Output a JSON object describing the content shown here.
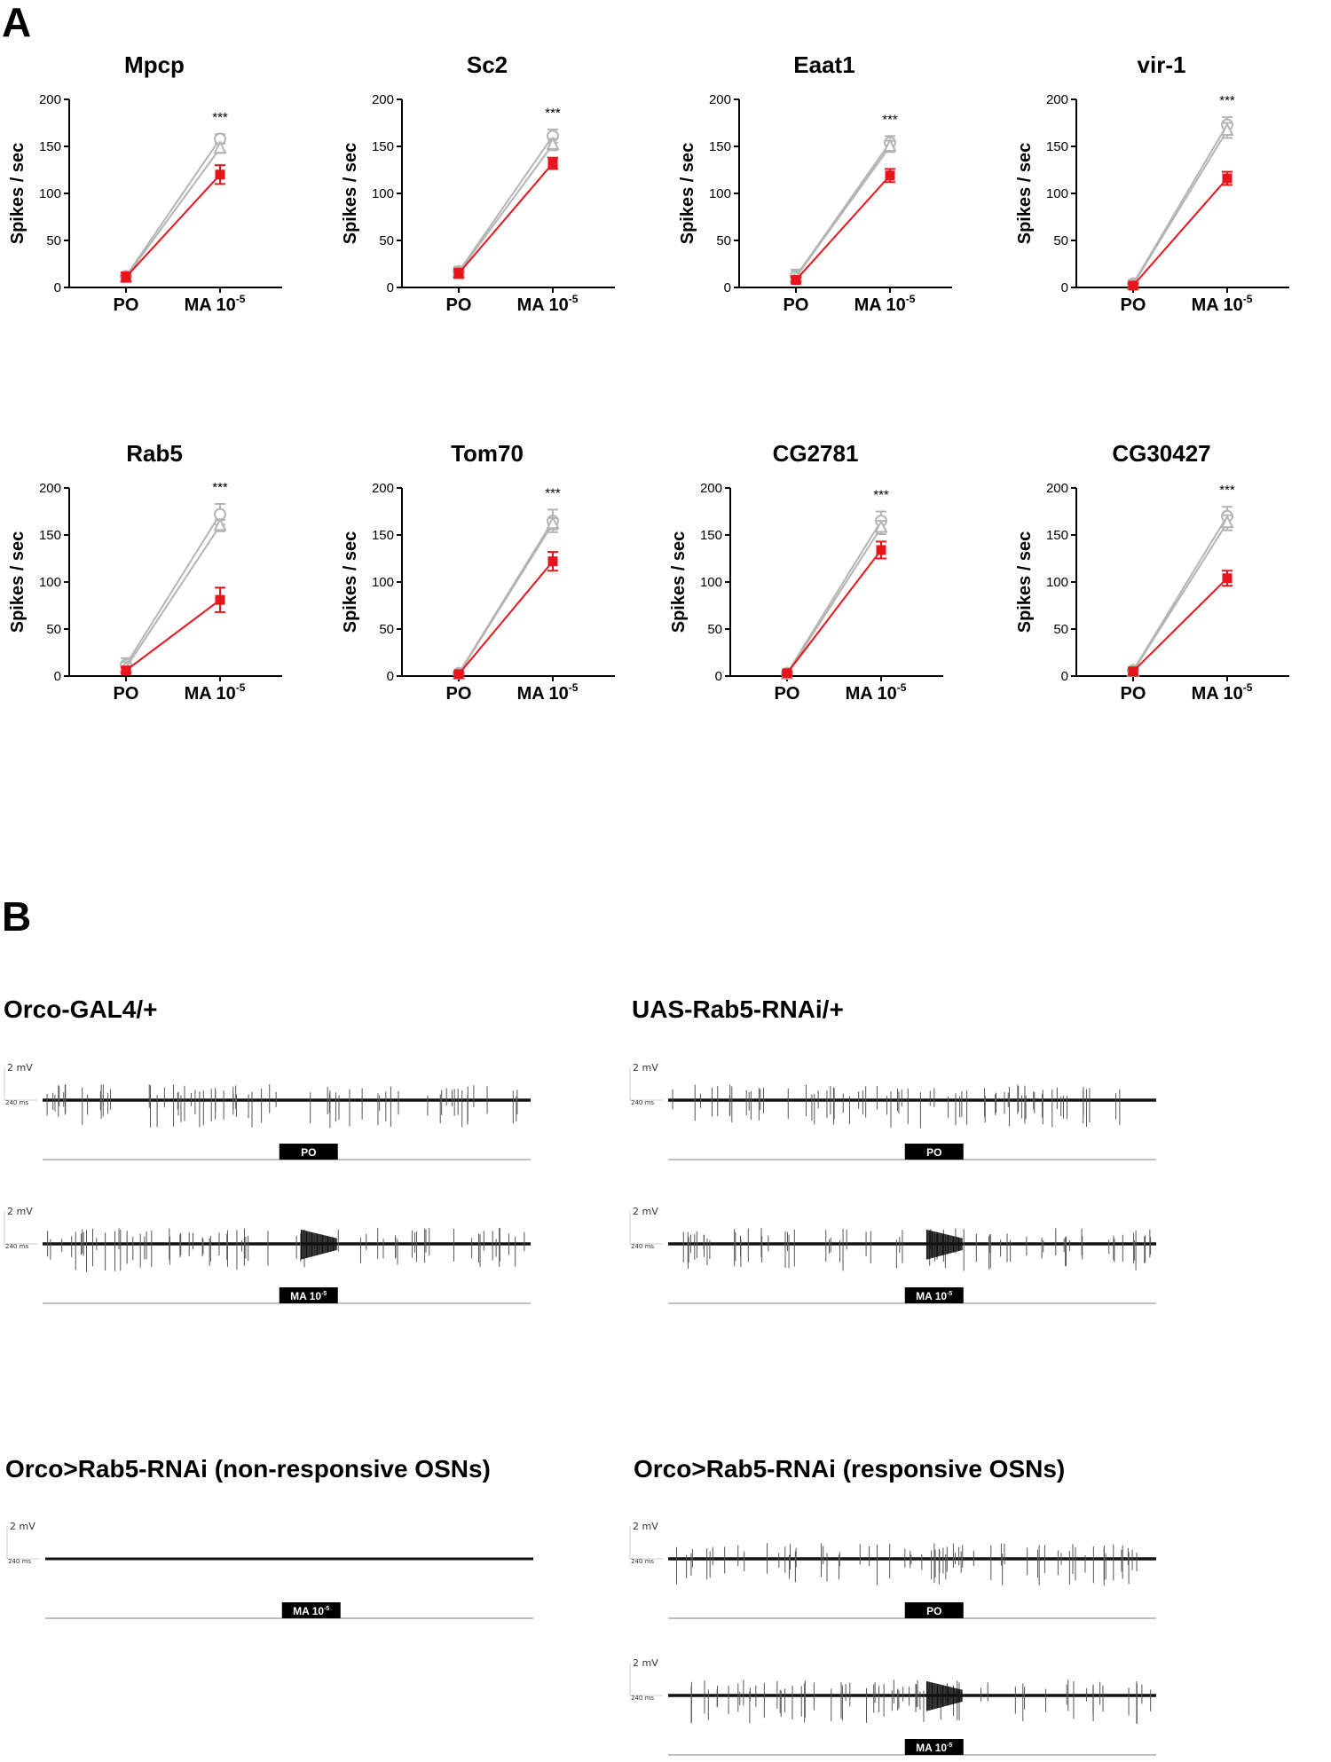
{
  "panel_a": {
    "letter": "A"
  },
  "panel_b": {
    "letter": "B"
  },
  "colors": {
    "control": "#b4b4b4",
    "rnai": "#e8141c",
    "trace": "#111111",
    "baseline": "#9a9a9a"
  },
  "chart_data": [
    {
      "type": "line",
      "title": "Mpcp",
      "ylabel": "Spikes / sec",
      "categories": [
        "PO",
        "MA 10"
      ],
      "x_superscript": "-5",
      "ylim": [
        0,
        200
      ],
      "yticks": [
        0,
        50,
        100,
        150,
        200
      ],
      "significance": "***",
      "series": [
        {
          "marker": "circle",
          "color": "control",
          "values": [
            12,
            158
          ],
          "err": [
            4,
            5
          ]
        },
        {
          "marker": "triangle",
          "color": "control",
          "values": [
            11,
            148
          ],
          "err": [
            4,
            5
          ]
        },
        {
          "marker": "square",
          "color": "rnai",
          "values": [
            11,
            120
          ],
          "err": [
            5,
            10
          ]
        }
      ]
    },
    {
      "type": "line",
      "title": "Sc2",
      "ylabel": "Spikes / sec",
      "categories": [
        "PO",
        "MA 10"
      ],
      "x_superscript": "-5",
      "ylim": [
        0,
        200
      ],
      "yticks": [
        0,
        50,
        100,
        150,
        200
      ],
      "significance": "***",
      "series": [
        {
          "marker": "circle",
          "color": "control",
          "values": [
            17,
            161
          ],
          "err": [
            5,
            7
          ]
        },
        {
          "marker": "triangle",
          "color": "control",
          "values": [
            16,
            152
          ],
          "err": [
            5,
            6
          ]
        },
        {
          "marker": "square",
          "color": "rnai",
          "values": [
            15,
            132
          ],
          "err": [
            5,
            6
          ]
        }
      ]
    },
    {
      "type": "line",
      "title": "Eaat1",
      "ylabel": "Spikes / sec",
      "categories": [
        "PO",
        "MA 10"
      ],
      "x_superscript": "-5",
      "ylim": [
        0,
        200
      ],
      "yticks": [
        0,
        50,
        100,
        150,
        200
      ],
      "significance": "***",
      "series": [
        {
          "marker": "circle",
          "color": "control",
          "values": [
            12,
            154
          ],
          "err": [
            7,
            7
          ]
        },
        {
          "marker": "triangle",
          "color": "control",
          "values": [
            11,
            150
          ],
          "err": [
            7,
            6
          ]
        },
        {
          "marker": "square",
          "color": "rnai",
          "values": [
            8,
            119
          ],
          "err": [
            3,
            7
          ]
        }
      ]
    },
    {
      "type": "line",
      "title": "vir-1",
      "ylabel": "Spikes / sec",
      "categories": [
        "PO",
        "MA 10"
      ],
      "x_superscript": "-5",
      "ylim": [
        0,
        200
      ],
      "yticks": [
        0,
        50,
        100,
        150,
        200
      ],
      "significance": "***",
      "series": [
        {
          "marker": "circle",
          "color": "control",
          "values": [
            4,
            173
          ],
          "err": [
            4,
            8
          ]
        },
        {
          "marker": "triangle",
          "color": "control",
          "values": [
            3,
            167
          ],
          "err": [
            3,
            8
          ]
        },
        {
          "marker": "square",
          "color": "rnai",
          "values": [
            2,
            116
          ],
          "err": [
            2,
            7
          ]
        }
      ]
    },
    {
      "type": "line",
      "title": "Rab5",
      "ylabel": "Spikes / sec",
      "categories": [
        "PO",
        "MA 10"
      ],
      "x_superscript": "-5",
      "ylim": [
        0,
        200
      ],
      "yticks": [
        0,
        50,
        100,
        150,
        200
      ],
      "significance": "***",
      "series": [
        {
          "marker": "circle",
          "color": "control",
          "values": [
            12,
            172
          ],
          "err": [
            7,
            11
          ]
        },
        {
          "marker": "triangle",
          "color": "control",
          "values": [
            9,
            160
          ],
          "err": [
            6,
            6
          ]
        },
        {
          "marker": "square",
          "color": "rnai",
          "values": [
            6,
            81
          ],
          "err": [
            3,
            13
          ]
        }
      ]
    },
    {
      "type": "line",
      "title": "Tom70",
      "ylabel": "Spikes / sec",
      "categories": [
        "PO",
        "MA 10"
      ],
      "x_superscript": "-5",
      "ylim": [
        0,
        200
      ],
      "yticks": [
        0,
        50,
        100,
        150,
        200
      ],
      "significance": "***",
      "series": [
        {
          "marker": "circle",
          "color": "control",
          "values": [
            3,
            165
          ],
          "err": [
            2,
            12
          ]
        },
        {
          "marker": "triangle",
          "color": "control",
          "values": [
            2,
            162
          ],
          "err": [
            2,
            6
          ]
        },
        {
          "marker": "square",
          "color": "rnai",
          "values": [
            2,
            122
          ],
          "err": [
            2,
            10
          ]
        }
      ]
    },
    {
      "type": "line",
      "title": "CG2781",
      "ylabel": "Spikes / sec",
      "categories": [
        "PO",
        "MA 10"
      ],
      "x_superscript": "-5",
      "ylim": [
        0,
        200
      ],
      "yticks": [
        0,
        50,
        100,
        150,
        200
      ],
      "significance": "***",
      "series": [
        {
          "marker": "circle",
          "color": "control",
          "values": [
            3,
            165
          ],
          "err": [
            2,
            10
          ]
        },
        {
          "marker": "triangle",
          "color": "control",
          "values": [
            2,
            158
          ],
          "err": [
            2,
            7
          ]
        },
        {
          "marker": "square",
          "color": "rnai",
          "values": [
            3,
            134
          ],
          "err": [
            2,
            9
          ]
        }
      ]
    },
    {
      "type": "line",
      "title": "CG30427",
      "ylabel": "Spikes / sec",
      "categories": [
        "PO",
        "MA 10"
      ],
      "x_superscript": "-5",
      "ylim": [
        0,
        200
      ],
      "yticks": [
        0,
        50,
        100,
        150,
        200
      ],
      "significance": "***",
      "series": [
        {
          "marker": "circle",
          "color": "control",
          "values": [
            6,
            170
          ],
          "err": [
            3,
            10
          ]
        },
        {
          "marker": "triangle",
          "color": "control",
          "values": [
            5,
            163
          ],
          "err": [
            3,
            8
          ]
        },
        {
          "marker": "square",
          "color": "rnai",
          "values": [
            5,
            104
          ],
          "err": [
            3,
            8
          ]
        }
      ]
    }
  ],
  "recordings": [
    {
      "title": "Orco-GAL4/+",
      "traces": [
        {
          "label": "PO",
          "superscript": "",
          "burst": false,
          "flat": false,
          "scale_mv": "2 mV",
          "scale_ms": "240 ms"
        },
        {
          "label": "MA 10",
          "superscript": "-5",
          "burst": true,
          "flat": false,
          "scale_mv": "2 mV",
          "scale_ms": "240 ms"
        }
      ]
    },
    {
      "title": "UAS-Rab5-RNAi/+",
      "traces": [
        {
          "label": "PO",
          "superscript": "",
          "burst": false,
          "flat": false,
          "scale_mv": "2 mV",
          "scale_ms": "240 ms"
        },
        {
          "label": "MA 10",
          "superscript": "-5",
          "burst": true,
          "flat": false,
          "scale_mv": "2 mV",
          "scale_ms": "240 ms"
        }
      ]
    },
    {
      "title": "Orco>Rab5-RNAi (non-responsive OSNs)",
      "traces": [
        {
          "label": "MA 10",
          "superscript": "-5",
          "burst": false,
          "flat": true,
          "scale_mv": "2 mV",
          "scale_ms": "240 ms"
        }
      ]
    },
    {
      "title": "Orco>Rab5-RNAi (responsive OSNs)",
      "traces": [
        {
          "label": "PO",
          "superscript": "",
          "burst": false,
          "flat": false,
          "scale_mv": "2 mV",
          "scale_ms": "240 ms"
        },
        {
          "label": "MA 10",
          "superscript": "-5",
          "burst": true,
          "flat": false,
          "scale_mv": "2 mV",
          "scale_ms": "240 ms"
        }
      ]
    }
  ]
}
